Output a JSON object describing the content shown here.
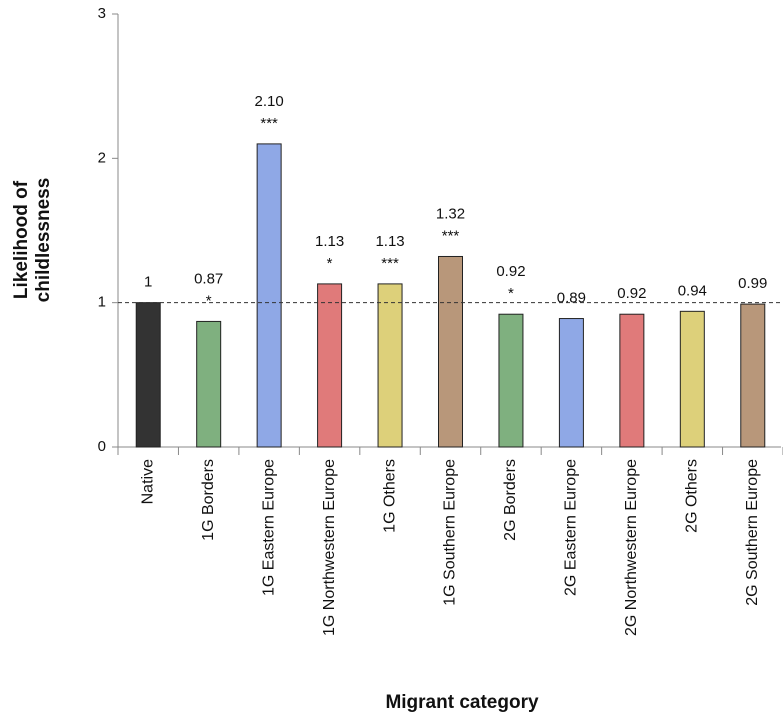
{
  "chart_data": {
    "type": "bar",
    "y_label": [
      "Likelihood of",
      "childlessness"
    ],
    "x_label": "Migrant category",
    "categories": [
      "Native",
      "1G Borders",
      "1G Eastern Europe",
      "1G Northwestern Europe",
      "1G Others",
      "1G Southern Europe",
      "2G Borders",
      "2G Eastern Europe",
      "2G Northwestern Europe",
      "2G Others",
      "2G Southern Europe"
    ],
    "values": [
      1,
      0.87,
      2.1,
      1.13,
      1.13,
      1.32,
      0.92,
      0.89,
      0.92,
      0.94,
      0.99
    ],
    "value_labels": [
      "1",
      "0.87",
      "2.10",
      "1.13",
      "1.13",
      "1.32",
      "0.92",
      "0.89",
      "0.92",
      "0.94",
      "0.99"
    ],
    "significance": [
      null,
      "*",
      "***",
      "*",
      "***",
      "***",
      "*",
      null,
      null,
      null,
      null
    ],
    "colors": [
      "#333333",
      "#7fb07f",
      "#8fa8e6",
      "#e07a7a",
      "#ddd07a",
      "#b8977a",
      "#7fb07f",
      "#8fa8e6",
      "#e07a7a",
      "#ddd07a",
      "#b8977a"
    ],
    "reference_line": 1,
    "ylim": [
      0,
      3
    ],
    "yticks": [
      0,
      1,
      2,
      3
    ]
  }
}
